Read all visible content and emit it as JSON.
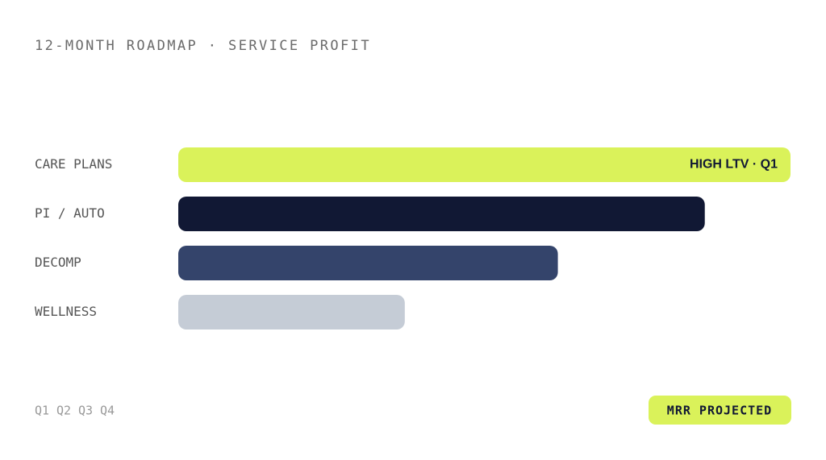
{
  "chart_data": {
    "type": "bar",
    "orientation": "horizontal",
    "title": "12-MONTH ROADMAP · SERVICE PROFIT",
    "categories": [
      "CARE PLANS",
      "PI / AUTO",
      "DECOMP",
      "WELLNESS"
    ],
    "values": [
      100,
      86,
      62,
      37
    ],
    "colors": [
      "#daf25a",
      "#111834",
      "#34446b",
      "#c5ccd6"
    ],
    "bar_labels": [
      "HIGH LTV · Q1",
      null,
      null,
      null
    ],
    "xlim": [
      0,
      100
    ],
    "footer_quarters": [
      "Q1",
      "Q2",
      "Q3",
      "Q4"
    ],
    "badge": "MRR PROJECTED"
  }
}
